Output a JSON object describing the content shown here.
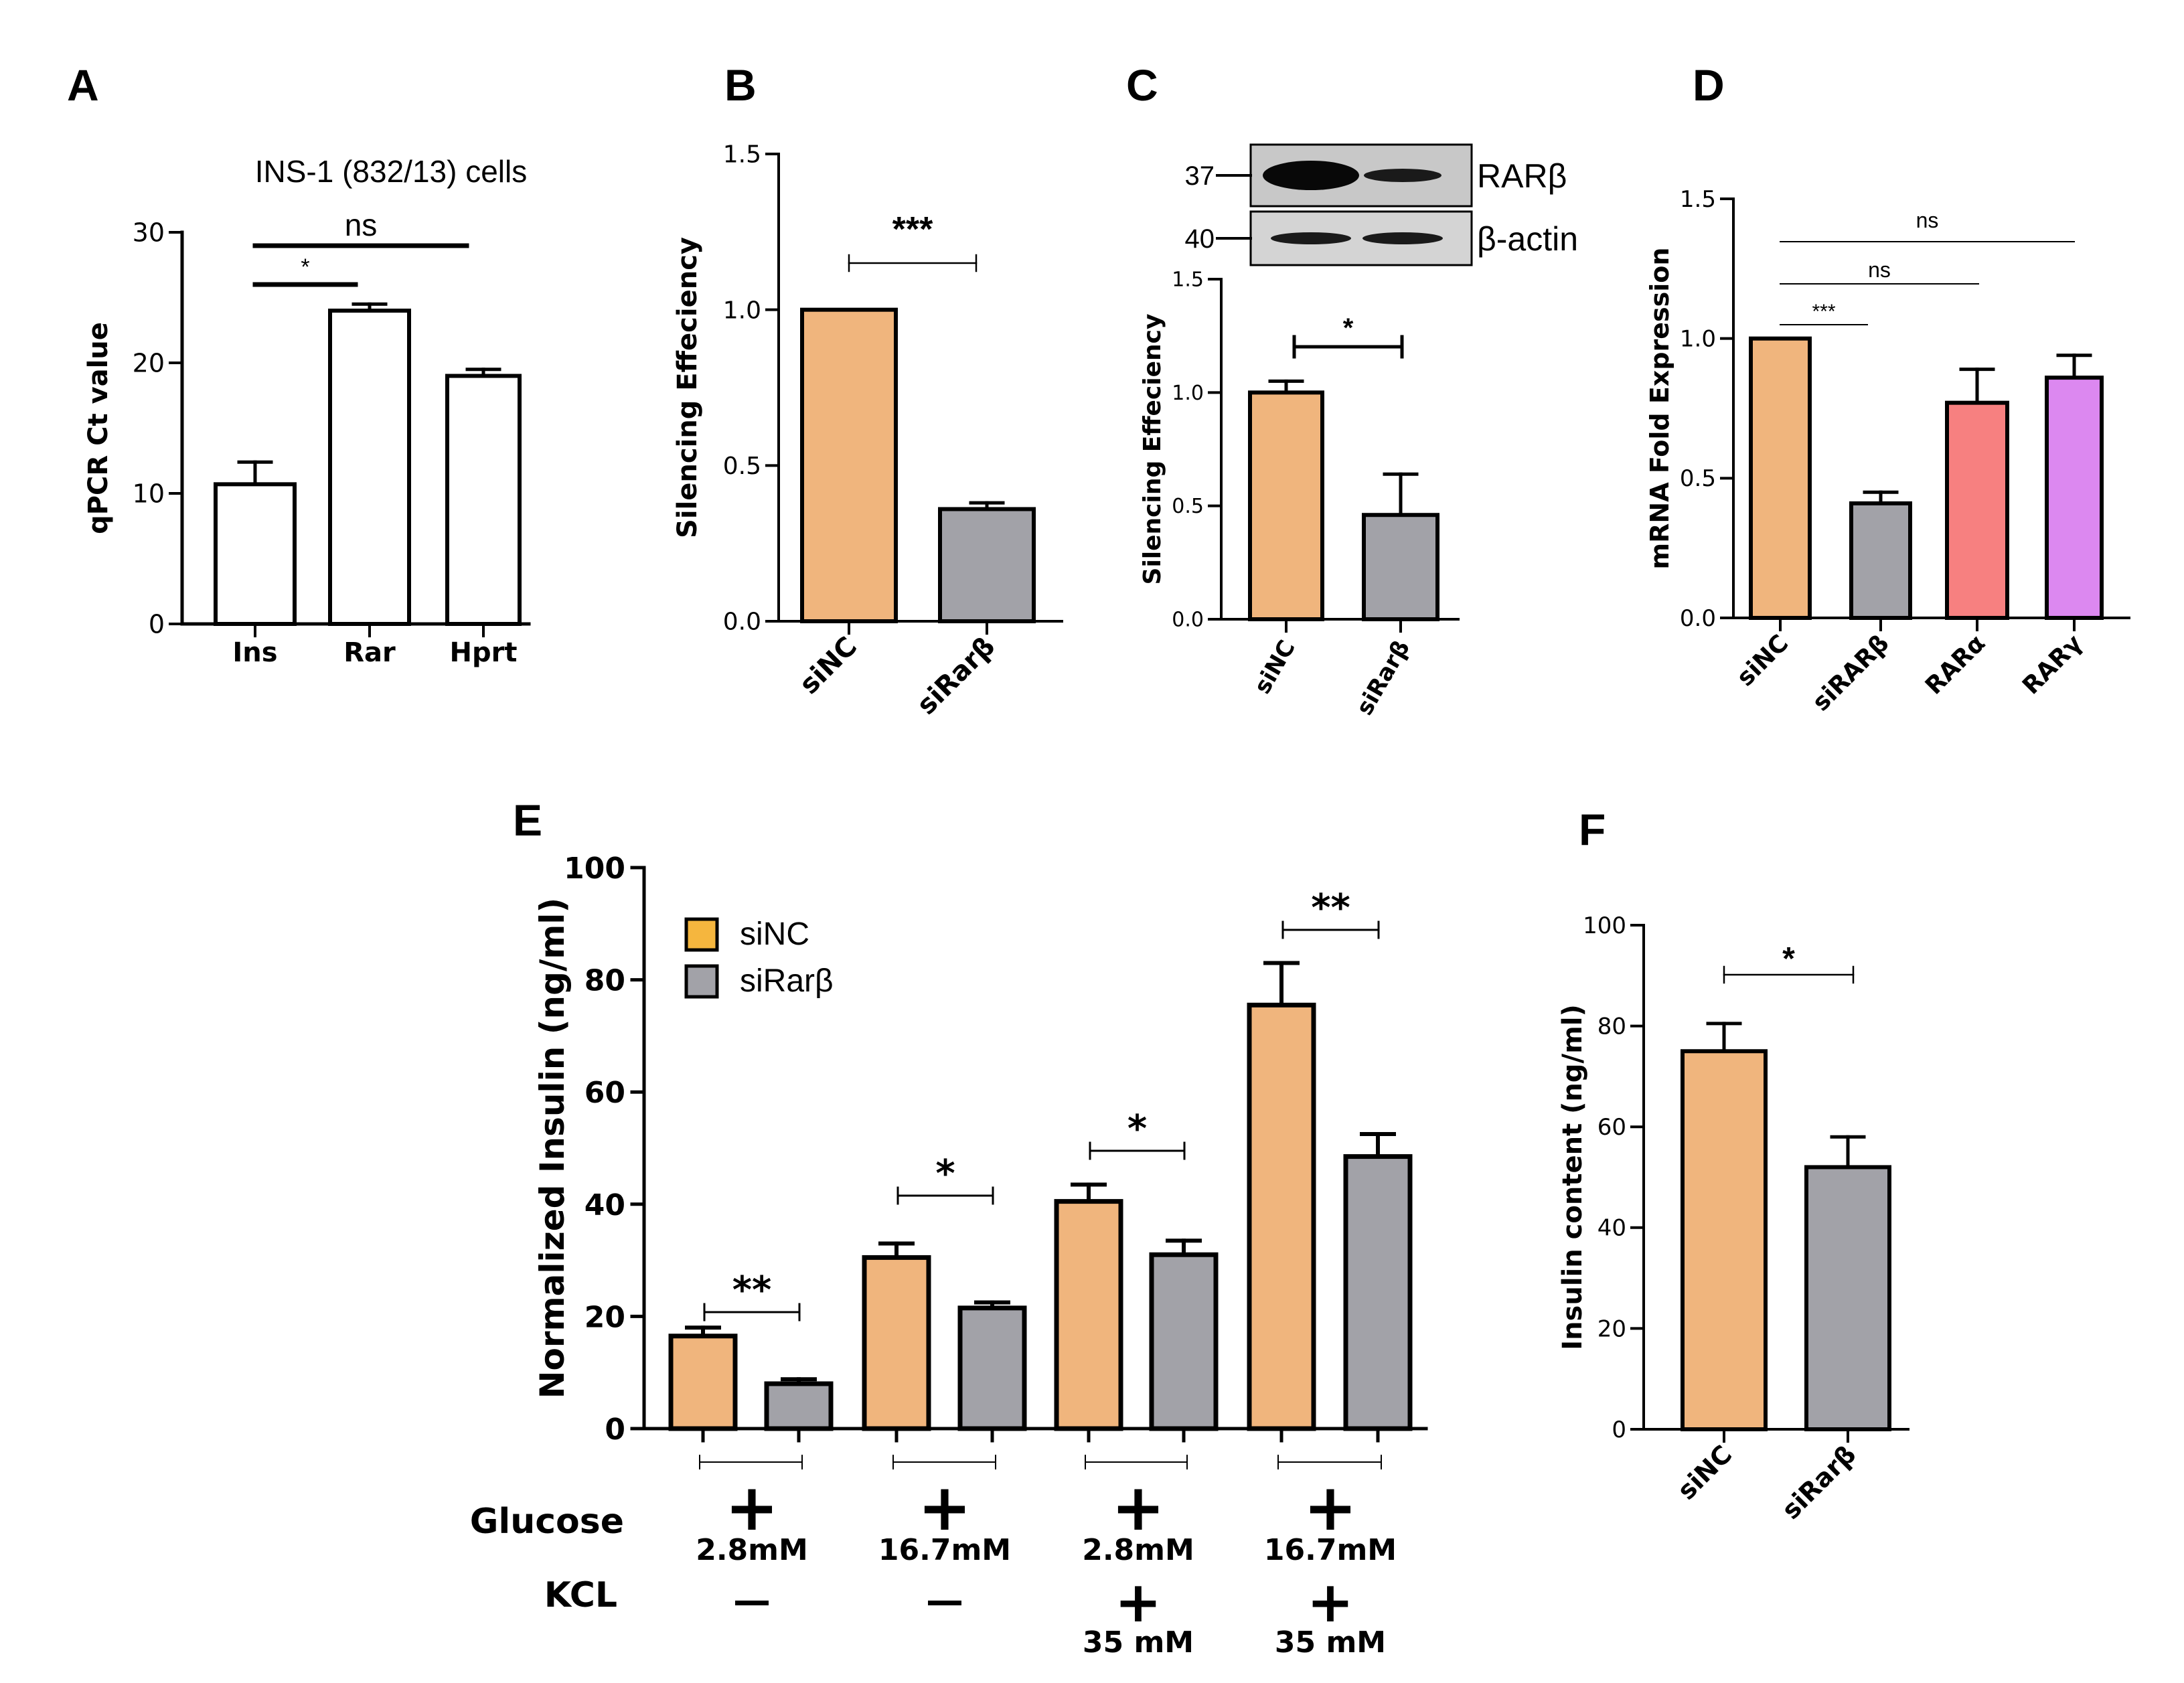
{
  "colors": {
    "orange": "#F0B57D",
    "gray": "#A2A2A8",
    "salmon": "#F78080",
    "violet": "#DC88F0",
    "white": "#FFFFFF",
    "legend_orange": "#F5B63E",
    "black": "#000000"
  },
  "panels": {
    "A": "A",
    "B": "B",
    "C": "C",
    "D": "D",
    "E": "E",
    "F": "F"
  },
  "chart_data": [
    {
      "id": "A",
      "type": "bar",
      "title": "INS-1 (832/13) cells",
      "ylabel": "qPCR Ct value",
      "xlabel": "",
      "categories": [
        "Ins",
        "Rar",
        "Hprt"
      ],
      "values": [
        10.7,
        24.0,
        19.0
      ],
      "errors": [
        1.7,
        0.5,
        0.5
      ],
      "ylim": [
        0,
        30
      ],
      "yticks": [
        "0",
        "10",
        "20",
        "30"
      ],
      "bar_colors": [
        "white",
        "white",
        "white"
      ],
      "significance": [
        {
          "from": 0,
          "to": 1,
          "label": "*"
        },
        {
          "from": 0,
          "to": 2,
          "label": "ns"
        }
      ]
    },
    {
      "id": "B",
      "type": "bar",
      "title": "",
      "ylabel": "Silencing Effeciency",
      "xlabel": "",
      "categories": [
        "siNC",
        "siRarβ"
      ],
      "values": [
        1.0,
        0.36
      ],
      "errors": [
        0.0,
        0.02
      ],
      "ylim": [
        0,
        1.5
      ],
      "yticks": [
        "0.0",
        "0.5",
        "1.0",
        "1.5"
      ],
      "bar_colors": [
        "orange",
        "gray"
      ],
      "significance": [
        {
          "from": 0,
          "to": 1,
          "label": "***"
        }
      ]
    },
    {
      "id": "C",
      "type": "bar",
      "title": "",
      "ylabel": "Silencing Effeciency",
      "xlabel": "",
      "categories": [
        "siNC",
        "siRarβ"
      ],
      "values": [
        1.0,
        0.46
      ],
      "errors": [
        0.05,
        0.18
      ],
      "ylim": [
        0,
        1.5
      ],
      "yticks": [
        "0.0",
        "0.5",
        "1.0",
        "1.5"
      ],
      "bar_colors": [
        "orange",
        "gray"
      ],
      "significance": [
        {
          "from": 0,
          "to": 1,
          "label": "*"
        }
      ],
      "blot": {
        "rows": [
          {
            "marker": "37",
            "label": "RARβ"
          },
          {
            "marker": "40",
            "label": "β-actin"
          }
        ]
      }
    },
    {
      "id": "D",
      "type": "bar",
      "title": "",
      "ylabel": "mRNA Fold Expression",
      "xlabel": "",
      "categories": [
        "siNC",
        "siRARβ",
        "RARα",
        "RARγ"
      ],
      "values": [
        1.0,
        0.41,
        0.77,
        0.86
      ],
      "errors": [
        0.0,
        0.04,
        0.12,
        0.08
      ],
      "ylim": [
        0,
        1.5
      ],
      "yticks": [
        "0.0",
        "0.5",
        "1.0",
        "1.5"
      ],
      "bar_colors": [
        "orange",
        "gray",
        "salmon",
        "violet"
      ],
      "significance": [
        {
          "from": 0,
          "to": 1,
          "label": "***"
        },
        {
          "from": 0,
          "to": 2,
          "label": "ns"
        },
        {
          "from": 0,
          "to": 3,
          "label": "ns"
        }
      ]
    },
    {
      "id": "E",
      "type": "bar",
      "title": "",
      "ylabel": "Normalized Insulin (ng/ml)",
      "xlabel": "",
      "ylim": [
        0,
        100
      ],
      "yticks": [
        "0",
        "20",
        "40",
        "60",
        "80",
        "100"
      ],
      "legend": [
        {
          "name": "siNC",
          "color": "legend_orange"
        },
        {
          "name": "siRarβ",
          "color": "gray"
        }
      ],
      "series": [
        {
          "name": "siNC",
          "values": [
            16.5,
            30.5,
            40.5,
            75.5
          ],
          "errors": [
            1.5,
            2.5,
            3.0,
            7.5
          ],
          "color": "orange"
        },
        {
          "name": "siRarβ",
          "values": [
            8.0,
            21.5,
            31.0,
            48.5
          ],
          "errors": [
            0.8,
            1.0,
            2.5,
            4.0
          ],
          "color": "gray"
        }
      ],
      "significance": [
        "**",
        "*",
        "*",
        "**"
      ],
      "conditions": {
        "glucose_label": "Glucose",
        "kcl_label": "KCL",
        "plus": "+",
        "dash": "—",
        "glucose": [
          "2.8mM",
          "16.7mM",
          "2.8mM",
          "16.7mM"
        ],
        "kcl": [
          "",
          "",
          "35 mM",
          "35 mM"
        ]
      }
    },
    {
      "id": "F",
      "type": "bar",
      "title": "",
      "ylabel": "Insulin content (ng/ml)",
      "xlabel": "",
      "categories": [
        "siNC",
        "siRarβ"
      ],
      "values": [
        75.0,
        52.0
      ],
      "errors": [
        5.5,
        6.0
      ],
      "ylim": [
        0,
        100
      ],
      "yticks": [
        "0",
        "20",
        "40",
        "60",
        "80",
        "100"
      ],
      "bar_colors": [
        "orange",
        "gray"
      ],
      "significance": [
        {
          "from": 0,
          "to": 1,
          "label": "*"
        }
      ]
    }
  ]
}
